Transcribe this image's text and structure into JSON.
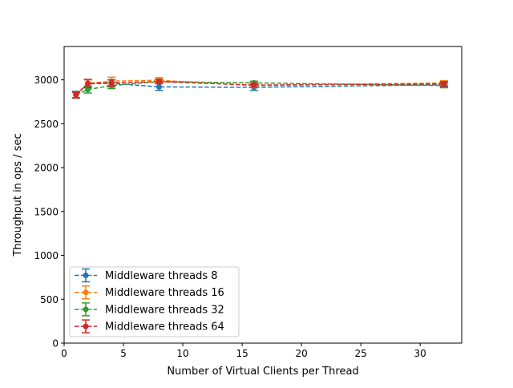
{
  "chart_data": {
    "type": "line",
    "title": "",
    "xlabel": "Number of Virtual Clients per Thread",
    "ylabel": "Throughput in ops / sec",
    "xlim": [
      0,
      33.5
    ],
    "ylim": [
      0,
      3380
    ],
    "xticks": [
      0,
      5,
      10,
      15,
      20,
      25,
      30
    ],
    "yticks": [
      0,
      500,
      1000,
      1500,
      2000,
      2500,
      3000
    ],
    "grid": false,
    "legend_position": "lower-left",
    "line_style": "dashed",
    "marker": "circle",
    "error_bars": true,
    "x": [
      1,
      2,
      4,
      8,
      16,
      32
    ],
    "series": [
      {
        "name": "Middleware threads 8",
        "color": "#1f77b4",
        "values": [
          2830,
          2955,
          2960,
          2920,
          2915,
          2945
        ],
        "errors": [
          40,
          45,
          40,
          40,
          35,
          25
        ]
      },
      {
        "name": "Middleware threads 16",
        "color": "#ff7f0e",
        "values": [
          2830,
          2960,
          2985,
          2995,
          2935,
          2965
        ],
        "errors": [
          35,
          40,
          45,
          30,
          25,
          25
        ]
      },
      {
        "name": "Middleware threads 32",
        "color": "#2ca02c",
        "values": [
          2830,
          2890,
          2935,
          2980,
          2965,
          2935
        ],
        "errors": [
          35,
          40,
          35,
          25,
          20,
          25
        ]
      },
      {
        "name": "Middleware threads 64",
        "color": "#d62728",
        "values": [
          2825,
          2960,
          2965,
          2980,
          2940,
          2955
        ],
        "errors": [
          30,
          45,
          35,
          25,
          25,
          25
        ]
      }
    ]
  }
}
